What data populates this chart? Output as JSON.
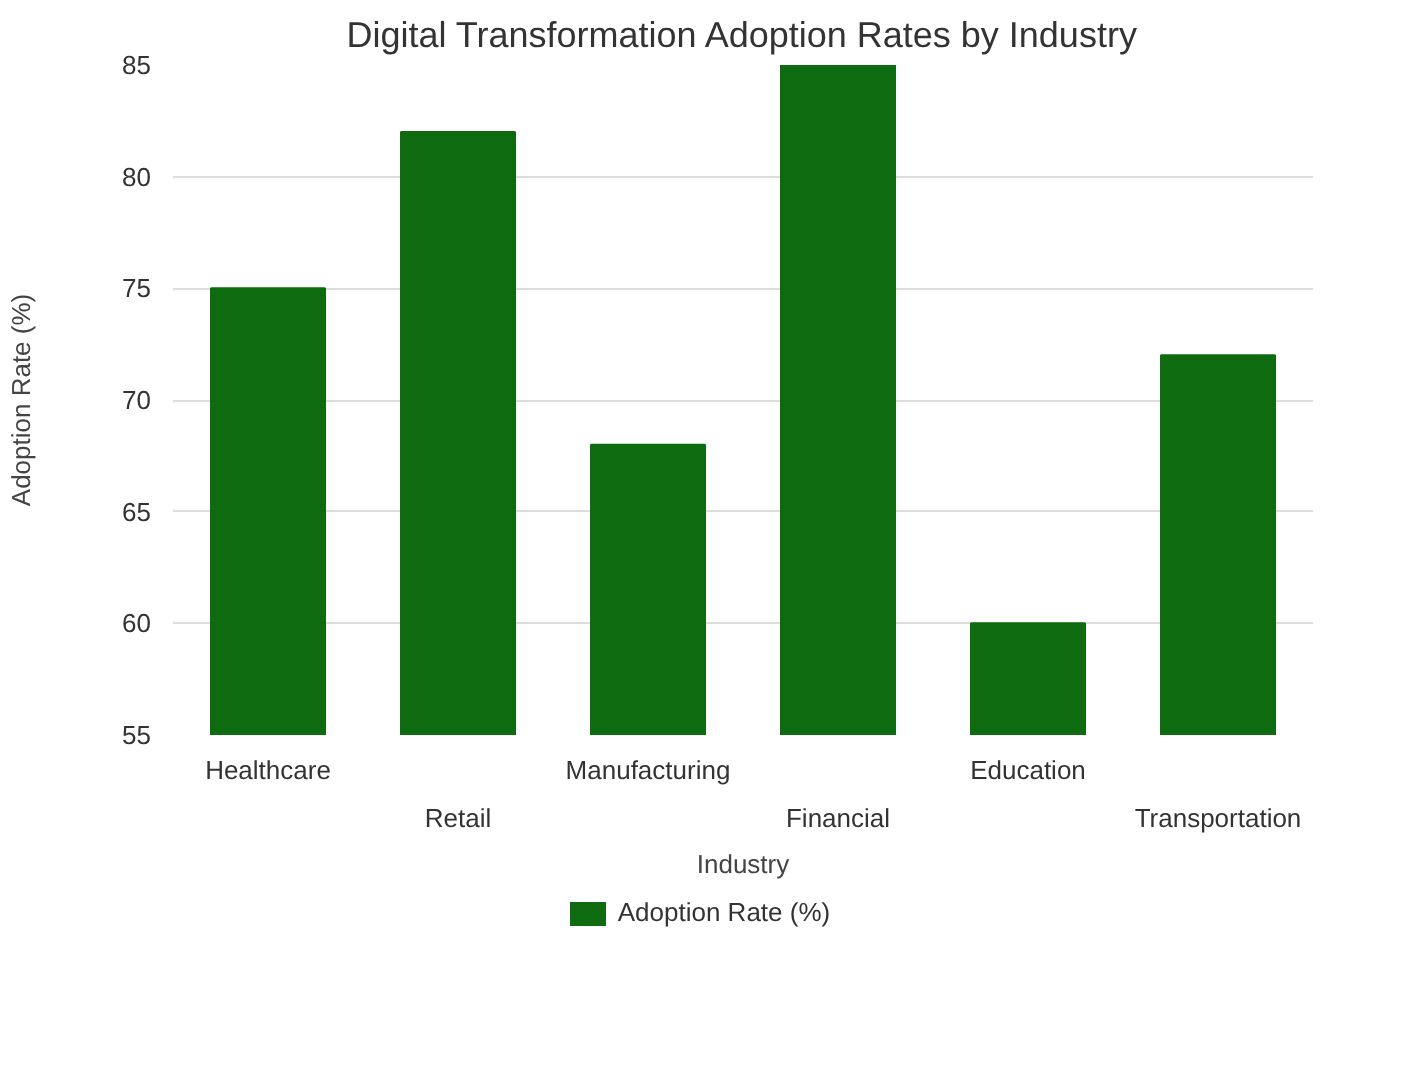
{
  "chart_data": {
    "type": "bar",
    "title": "Digital Transformation Adoption Rates by Industry",
    "xlabel": "Industry",
    "ylabel": "Adoption Rate (%)",
    "categories": [
      "Healthcare",
      "Retail",
      "Manufacturing",
      "Financial",
      "Education",
      "Transportation"
    ],
    "series": [
      {
        "name": "Adoption Rate (%)",
        "color": "#0f6b0f",
        "values": [
          75,
          82,
          68,
          85,
          60,
          72
        ]
      }
    ],
    "ylim": [
      55,
      85
    ],
    "yticks": [
      55,
      60,
      65,
      70,
      75,
      80,
      85
    ],
    "grid": "y",
    "legend": "bottom"
  }
}
